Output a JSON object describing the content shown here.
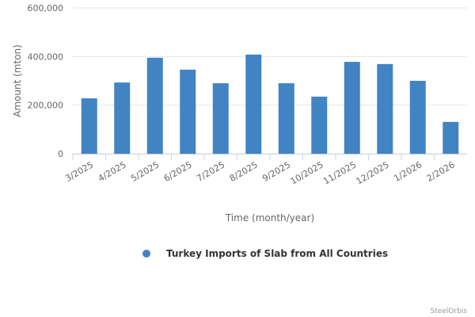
{
  "chart_data": {
    "type": "bar",
    "y_axis_title": "Amount (mton)",
    "x_axis_title": "Time (month/year)",
    "categories": [
      "3/2025",
      "4/2025",
      "5/2025",
      "6/2025",
      "7/2025",
      "8/2025",
      "9/2025",
      "10/2025",
      "11/2025",
      "12/2025",
      "1/2026",
      "2/2026"
    ],
    "series": [
      {
        "name": "Turkey Imports of Slab from All Countries",
        "color": "#4283c4",
        "values": [
          228000,
          293000,
          395000,
          346000,
          290000,
          408000,
          290000,
          235000,
          378000,
          369000,
          300000,
          131000
        ]
      }
    ],
    "ylim": [
      0,
      600000
    ],
    "yticks": [
      0,
      {
        "value": 200000,
        "label": "200,000"
      },
      {
        "value": 400000,
        "label": "400,000"
      },
      {
        "value": 600000,
        "label": "600,000"
      }
    ],
    "grid": true,
    "credit": "SteelOrbis"
  }
}
